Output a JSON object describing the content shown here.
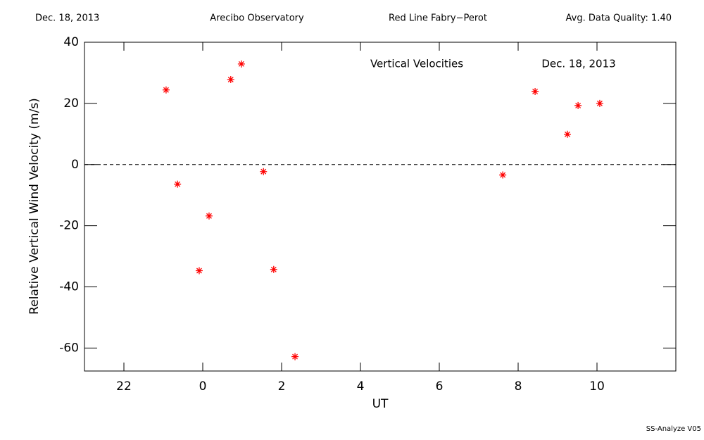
{
  "header": {
    "date": "Dec. 18, 2013",
    "site": "Arecibo Observatory",
    "instrument": "Red Line Fabry−Perot",
    "quality": "Avg. Data Quality: 1.40"
  },
  "footer": "SS-Analyze V05",
  "chart_data": {
    "type": "scatter",
    "annotations": [
      "Vertical Velocities",
      "Dec. 18, 2013"
    ],
    "xlabel": "UT",
    "ylabel": "Relative Vertical Wind Velocity (m/s)",
    "color": "#ff0000",
    "x": [
      23.07,
      23.36,
      23.91,
      24.16,
      24.71,
      24.98,
      25.54,
      25.8,
      26.34,
      31.61,
      32.43,
      33.25,
      33.52,
      34.07
    ],
    "values": [
      24.4,
      -6.4,
      -34.7,
      -16.8,
      27.8,
      32.9,
      -2.3,
      -34.3,
      -62.8,
      -3.4,
      23.9,
      9.9,
      19.3,
      20.0
    ],
    "xlim": [
      21,
      36
    ],
    "xticks": [
      {
        "value": 22,
        "label": "22"
      },
      {
        "value": 24,
        "label": "0"
      },
      {
        "value": 26,
        "label": "2"
      },
      {
        "value": 28,
        "label": "4"
      },
      {
        "value": 30,
        "label": "6"
      },
      {
        "value": 32,
        "label": "8"
      },
      {
        "value": 34,
        "label": "10"
      }
    ],
    "ylim": [
      -67.5,
      40
    ],
    "yticks": [
      -60,
      -40,
      -20,
      0,
      20,
      40
    ]
  }
}
